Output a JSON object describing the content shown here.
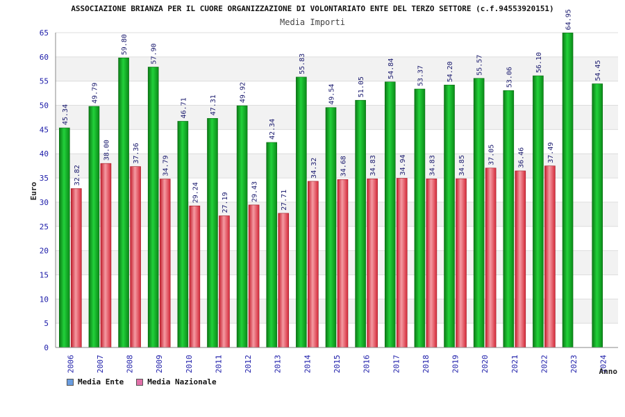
{
  "chart_data": {
    "type": "bar",
    "title": "ASSOCIAZIONE BRIANZA PER IL CUORE ORGANIZZAZIONE DI VOLONTARIATO ENTE DEL TERZO SETTORE (c.f.94553920151)",
    "subtitle": "Media Importi",
    "xlabel": "Anno",
    "ylabel": "Euro",
    "ylim": [
      0,
      65
    ],
    "yticks": [
      0,
      5,
      10,
      15,
      20,
      25,
      30,
      35,
      40,
      45,
      50,
      55,
      60,
      65
    ],
    "grid": true,
    "legend_position": "bottom-left",
    "categories": [
      "2006",
      "2007",
      "2008",
      "2009",
      "2010",
      "2011",
      "2012",
      "2013",
      "2014",
      "2015",
      "2016",
      "2017",
      "2018",
      "2019",
      "2020",
      "2021",
      "2022",
      "2023",
      "2024"
    ],
    "series": [
      {
        "name": "Media Ente",
        "legend_color": "#6a9de0",
        "bar_color": "#11aa22",
        "values": [
          45.34,
          49.79,
          59.8,
          57.9,
          46.71,
          47.31,
          49.92,
          42.34,
          55.83,
          49.54,
          51.05,
          54.84,
          53.37,
          54.2,
          55.57,
          53.06,
          56.1,
          64.95,
          54.45
        ]
      },
      {
        "name": "Media Nazionale",
        "legend_color": "#e070a8",
        "bar_color": "#e03b4a",
        "values": [
          32.82,
          38.0,
          37.36,
          34.79,
          29.24,
          27.19,
          29.43,
          27.71,
          34.32,
          34.68,
          34.83,
          34.94,
          34.83,
          34.85,
          37.05,
          36.46,
          37.49,
          null,
          null
        ]
      }
    ]
  }
}
